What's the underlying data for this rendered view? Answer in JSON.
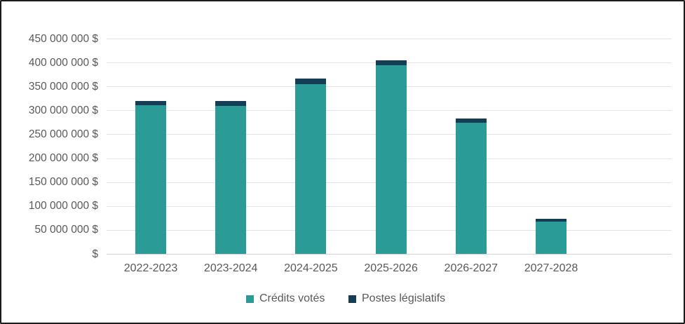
{
  "chart_data": {
    "type": "bar",
    "stacked": true,
    "title": "",
    "categories": [
      "2022-2023",
      "2023-2024",
      "2024-2025",
      "2025-2026",
      "2026-2027",
      "2027-2028"
    ],
    "series": [
      {
        "name": "Crédits votés",
        "color": "#2a9b96",
        "values": [
          311000000,
          309000000,
          355000000,
          394000000,
          274000000,
          67000000
        ]
      },
      {
        "name": "Postes législatifs",
        "color": "#163d56",
        "values": [
          9000000,
          10000000,
          12000000,
          10000000,
          9000000,
          6000000
        ]
      }
    ],
    "y_axis": {
      "min": 0,
      "max": 450000000,
      "tick_interval": 50000000,
      "tick_labels_top_down": [
        "450 000 000 $",
        "400 000 000 $",
        "350 000 000 $",
        "300 000 000 $",
        "250 000 000 $",
        "200 000 000 $",
        "150 000 000 $",
        "100 000 000 $",
        "50 000 000 $",
        "$"
      ]
    },
    "legend": {
      "position": "bottom",
      "entries": [
        "Crédits votés",
        "Postes législatifs"
      ]
    },
    "grid": true,
    "text_color": "#595959",
    "gridline_color": "#e4e4e4",
    "background_color": "#ffffff"
  }
}
